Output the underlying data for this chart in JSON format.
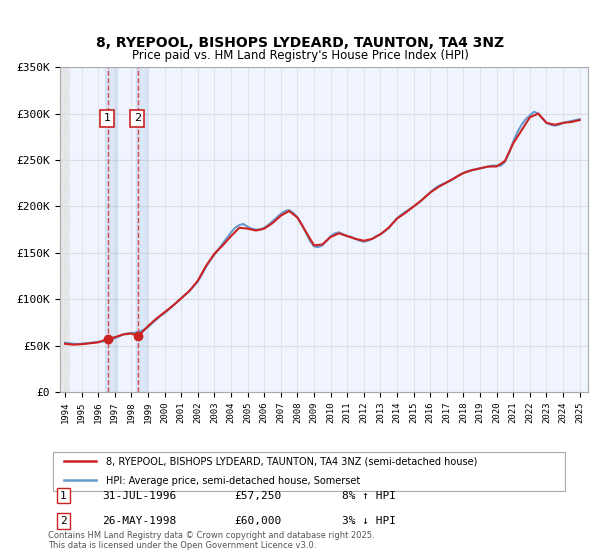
{
  "title": "8, RYEPOOL, BISHOPS LYDEARD, TAUNTON, TA4 3NZ",
  "subtitle": "Price paid vs. HM Land Registry's House Price Index (HPI)",
  "ylabel": "",
  "xlabel": "",
  "ylim": [
    0,
    350000
  ],
  "xlim_start": 1994.0,
  "xlim_end": 2025.5,
  "yticks": [
    0,
    50000,
    100000,
    150000,
    200000,
    250000,
    300000,
    350000
  ],
  "ytick_labels": [
    "£0",
    "£50K",
    "£100K",
    "£150K",
    "£200K",
    "£250K",
    "£300K",
    "£350K"
  ],
  "hpi_color": "#6699cc",
  "price_color": "#cc2222",
  "bg_color": "#f0f4ff",
  "hatch_color": "#cccccc",
  "grid_color": "#dddddd",
  "purchase1_date": 1996.58,
  "purchase1_price": 57250,
  "purchase1_label": "1",
  "purchase1_date_str": "31-JUL-1996",
  "purchase1_price_str": "£57,250",
  "purchase1_hpi_str": "8% ↑ HPI",
  "purchase2_date": 1998.4,
  "purchase2_price": 60000,
  "purchase2_label": "2",
  "purchase2_date_str": "26-MAY-1998",
  "purchase2_price_str": "£60,000",
  "purchase2_hpi_str": "3% ↓ HPI",
  "legend_line1": "8, RYEPOOL, BISHOPS LYDEARD, TAUNTON, TA4 3NZ (semi-detached house)",
  "legend_line2": "HPI: Average price, semi-detached house, Somerset",
  "footnote": "Contains HM Land Registry data © Crown copyright and database right 2025.\nThis data is licensed under the Open Government Licence v3.0.",
  "hpi_data_x": [
    1994.0,
    1994.25,
    1994.5,
    1994.75,
    1995.0,
    1995.25,
    1995.5,
    1995.75,
    1996.0,
    1996.25,
    1996.5,
    1996.75,
    1997.0,
    1997.25,
    1997.5,
    1997.75,
    1998.0,
    1998.25,
    1998.5,
    1998.75,
    1999.0,
    1999.25,
    1999.5,
    1999.75,
    2000.0,
    2000.25,
    2000.5,
    2000.75,
    2001.0,
    2001.25,
    2001.5,
    2001.75,
    2002.0,
    2002.25,
    2002.5,
    2002.75,
    2003.0,
    2003.25,
    2003.5,
    2003.75,
    2004.0,
    2004.25,
    2004.5,
    2004.75,
    2005.0,
    2005.25,
    2005.5,
    2005.75,
    2006.0,
    2006.25,
    2006.5,
    2006.75,
    2007.0,
    2007.25,
    2007.5,
    2007.75,
    2008.0,
    2008.25,
    2008.5,
    2008.75,
    2009.0,
    2009.25,
    2009.5,
    2009.75,
    2010.0,
    2010.25,
    2010.5,
    2010.75,
    2011.0,
    2011.25,
    2011.5,
    2011.75,
    2012.0,
    2012.25,
    2012.5,
    2012.75,
    2013.0,
    2013.25,
    2013.5,
    2013.75,
    2014.0,
    2014.25,
    2014.5,
    2014.75,
    2015.0,
    2015.25,
    2015.5,
    2015.75,
    2016.0,
    2016.25,
    2016.5,
    2016.75,
    2017.0,
    2017.25,
    2017.5,
    2017.75,
    2018.0,
    2018.25,
    2018.5,
    2018.75,
    2019.0,
    2019.25,
    2019.5,
    2019.75,
    2020.0,
    2020.25,
    2020.5,
    2020.75,
    2021.0,
    2021.25,
    2021.5,
    2021.75,
    2022.0,
    2022.25,
    2022.5,
    2022.75,
    2023.0,
    2023.25,
    2023.5,
    2023.75,
    2024.0,
    2024.25,
    2024.5,
    2024.75,
    2025.0
  ],
  "hpi_data_y": [
    53000,
    52500,
    52000,
    51800,
    52000,
    52500,
    53000,
    53500,
    54000,
    54500,
    55000,
    56000,
    58000,
    60000,
    62000,
    63000,
    63500,
    64000,
    65000,
    67000,
    70000,
    74000,
    78000,
    82000,
    85000,
    89000,
    93000,
    97000,
    101000,
    105000,
    109000,
    114000,
    119000,
    127000,
    135000,
    142000,
    148000,
    154000,
    160000,
    166000,
    172000,
    177000,
    180000,
    181000,
    178000,
    176000,
    175000,
    175000,
    177000,
    180000,
    184000,
    188000,
    192000,
    195000,
    196000,
    193000,
    188000,
    181000,
    172000,
    163000,
    157000,
    156000,
    158000,
    163000,
    168000,
    171000,
    172000,
    170000,
    168000,
    167000,
    165000,
    163000,
    162000,
    163000,
    165000,
    168000,
    170000,
    173000,
    177000,
    182000,
    187000,
    191000,
    194000,
    197000,
    200000,
    203000,
    207000,
    211000,
    215000,
    219000,
    222000,
    224000,
    226000,
    228000,
    231000,
    234000,
    236000,
    238000,
    239000,
    240000,
    241000,
    242000,
    243000,
    244000,
    244000,
    244000,
    248000,
    258000,
    270000,
    280000,
    288000,
    294000,
    298000,
    302000,
    300000,
    295000,
    290000,
    288000,
    287000,
    288000,
    290000,
    291000,
    292000,
    293000,
    294000
  ],
  "price_data_x": [
    1994.0,
    1994.5,
    1995.0,
    1995.5,
    1996.0,
    1996.58,
    1997.0,
    1997.5,
    1998.0,
    1998.4,
    1999.0,
    1999.5,
    2000.0,
    2000.5,
    2001.0,
    2001.5,
    2002.0,
    2002.5,
    2003.0,
    2003.5,
    2004.0,
    2004.5,
    2005.0,
    2005.5,
    2006.0,
    2006.5,
    2007.0,
    2007.5,
    2008.0,
    2008.5,
    2009.0,
    2009.5,
    2010.0,
    2010.5,
    2011.0,
    2011.5,
    2012.0,
    2012.5,
    2013.0,
    2013.5,
    2014.0,
    2014.5,
    2015.0,
    2015.5,
    2016.0,
    2016.5,
    2017.0,
    2017.5,
    2018.0,
    2018.5,
    2019.0,
    2019.5,
    2020.0,
    2020.5,
    2021.0,
    2021.5,
    2022.0,
    2022.5,
    2023.0,
    2023.5,
    2024.0,
    2024.5,
    2025.0
  ],
  "price_data_y": [
    52000,
    51000,
    51500,
    52500,
    53500,
    57250,
    59000,
    62000,
    63000,
    60000,
    71000,
    79000,
    86000,
    93000,
    101000,
    109000,
    120000,
    136000,
    149000,
    158000,
    168000,
    177000,
    176000,
    174000,
    176000,
    182000,
    190000,
    195000,
    188000,
    173000,
    158000,
    159000,
    167000,
    171000,
    168000,
    165000,
    163000,
    165000,
    170000,
    177000,
    187000,
    193000,
    200000,
    207000,
    215000,
    221000,
    226000,
    231000,
    236000,
    239000,
    241000,
    243000,
    243000,
    249000,
    268000,
    282000,
    296000,
    300000,
    290000,
    288000,
    290000,
    291000,
    293000
  ]
}
